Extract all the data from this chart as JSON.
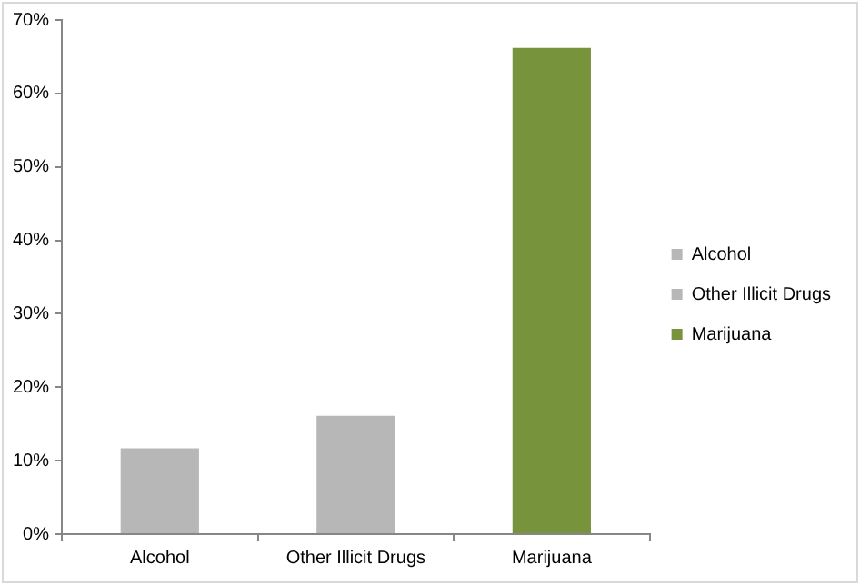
{
  "chart_data": {
    "type": "bar",
    "categories": [
      "Alcohol",
      "Other Illicit Drugs",
      "Marijuana"
    ],
    "series": [
      {
        "name": "Alcohol",
        "color": "#b7b7b7",
        "values": [
          11.7,
          null,
          null
        ]
      },
      {
        "name": "Other Illicit Drugs",
        "color": "#b7b7b7",
        "values": [
          null,
          16.1,
          null
        ]
      },
      {
        "name": "Marijuana",
        "color": "#77933c",
        "values": [
          null,
          null,
          66.2
        ]
      }
    ],
    "ylim": [
      0,
      70
    ],
    "yticks": [
      {
        "value": 0,
        "label": "0%"
      },
      {
        "value": 10,
        "label": "10%"
      },
      {
        "value": 20,
        "label": "20%"
      },
      {
        "value": 30,
        "label": "30%"
      },
      {
        "value": 40,
        "label": "40%"
      },
      {
        "value": 50,
        "label": "50%"
      },
      {
        "value": 60,
        "label": "60%"
      },
      {
        "value": 70,
        "label": "70%"
      }
    ],
    "grid": false,
    "legend": "right"
  }
}
